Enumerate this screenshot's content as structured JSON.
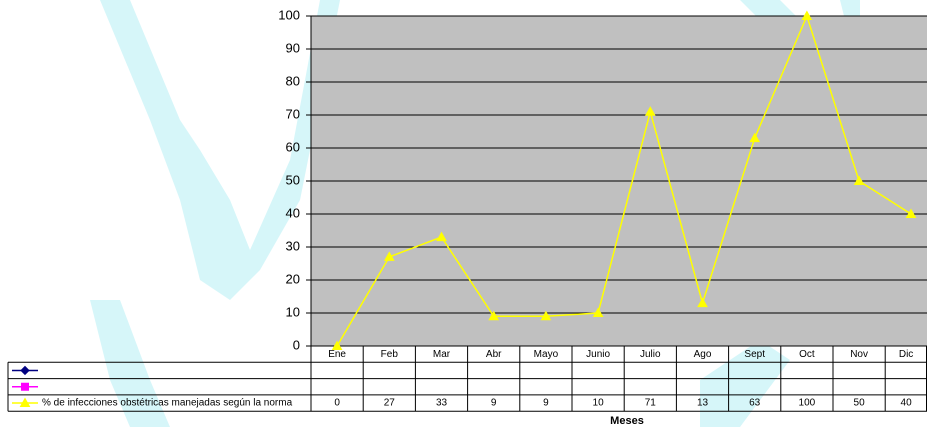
{
  "chart_data": {
    "type": "line",
    "x_label": "Meses",
    "categories": [
      "Ene",
      "Feb",
      "Mar",
      "Abr",
      "Mayo",
      "Junio",
      "Julio",
      "Ago",
      "Sept",
      "Oct",
      "Nov",
      "Dic"
    ],
    "series": [
      {
        "color": "#000080",
        "marker": "diamond",
        "values": [
          null,
          null,
          null,
          null,
          null,
          null,
          null,
          null,
          null,
          null,
          null,
          null
        ]
      },
      {
        "color": "#ff00ff",
        "marker": "square",
        "values": [
          null,
          null,
          null,
          null,
          null,
          null,
          null,
          null,
          null,
          null,
          null,
          null
        ]
      },
      {
        "name": "% de infecciones obstétricas manejadas según la norma",
        "color": "#ffff00",
        "marker": "triangle",
        "values": [
          0,
          27,
          33,
          9,
          9,
          10,
          71,
          13,
          63,
          100,
          50,
          40
        ]
      }
    ],
    "ylim": [
      0,
      100
    ],
    "yticks": [
      0,
      10,
      20,
      30,
      40,
      50,
      60,
      70,
      80,
      90,
      100
    ],
    "grid": true
  }
}
